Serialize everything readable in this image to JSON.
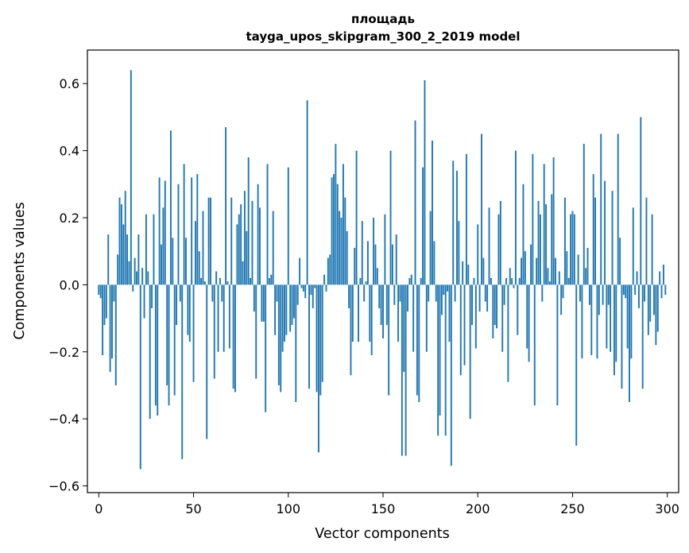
{
  "chart_data": {
    "type": "bar",
    "title_lines": [
      "площадь",
      "tayga_upos_skipgram_300_2_2019 model"
    ],
    "xlabel": "Vector components",
    "ylabel": "Components values",
    "xlim": [
      -6,
      306
    ],
    "ylim": [
      -0.62,
      0.7
    ],
    "xticks": [
      0,
      50,
      100,
      150,
      200,
      250,
      300
    ],
    "yticks": [
      -0.6,
      -0.4,
      -0.2,
      0.0,
      0.2,
      0.4,
      0.6
    ],
    "ytick_labels": [
      "−0.6",
      "−0.4",
      "−0.2",
      "0.0",
      "0.2",
      "0.4",
      "0.6"
    ],
    "grid": false,
    "bar_color": "#1f77b4",
    "values": [
      -0.03,
      -0.04,
      -0.21,
      -0.12,
      -0.1,
      0.15,
      -0.26,
      -0.22,
      -0.05,
      -0.3,
      0.09,
      0.26,
      0.24,
      0.18,
      0.28,
      0.15,
      0.07,
      0.64,
      -0.02,
      0.08,
      0.04,
      0.15,
      -0.55,
      0.05,
      -0.1,
      0.21,
      0.04,
      -0.4,
      -0.07,
      0.21,
      -0.36,
      -0.39,
      0.32,
      0.12,
      0.23,
      0.31,
      -0.3,
      -0.36,
      0.46,
      0.14,
      -0.33,
      -0.12,
      0.3,
      -0.05,
      -0.52,
      0.36,
      0.14,
      -0.15,
      -0.17,
      0.32,
      -0.29,
      0.19,
      0.33,
      0.1,
      0.02,
      0.22,
      0.01,
      -0.46,
      0.26,
      0.26,
      -0.05,
      -0.28,
      0.04,
      -0.2,
      0.02,
      -0.05,
      -0.2,
      0.47,
      0.01,
      -0.19,
      0.26,
      -0.31,
      -0.32,
      0.18,
      0.21,
      0.24,
      0.07,
      0.28,
      0.16,
      0.38,
      0.02,
      0.25,
      -0.08,
      -0.28,
      0.3,
      0.23,
      -0.11,
      -0.11,
      -0.38,
      0.36,
      0.02,
      0.03,
      0.22,
      -0.15,
      -0.05,
      -0.3,
      -0.32,
      -0.2,
      -0.17,
      -0.15,
      0.35,
      -0.14,
      -0.12,
      -0.1,
      -0.35,
      -0.06,
      0.08,
      -0.01,
      -0.02,
      -0.04,
      0.55,
      -0.31,
      -0.03,
      -0.07,
      -0.01,
      -0.32,
      -0.5,
      -0.33,
      -0.29,
      0.03,
      -0.02,
      0.08,
      0.09,
      0.32,
      0.33,
      0.42,
      0.3,
      0.22,
      0.2,
      0.36,
      0.26,
      0.16,
      -0.07,
      -0.27,
      -0.17,
      0.11,
      0.4,
      -0.17,
      0.02,
      0.19,
      -0.05,
      0.01,
      0.13,
      -0.17,
      -0.21,
      0.2,
      0.12,
      0.05,
      -0.07,
      -0.12,
      -0.16,
      0.21,
      -0.12,
      -0.33,
      0.4,
      0.12,
      -0.06,
      0.15,
      -0.17,
      -0.05,
      -0.51,
      -0.26,
      -0.51,
      -0.08,
      0.02,
      0.03,
      -0.2,
      0.49,
      -0.33,
      -0.35,
      0.02,
      0.35,
      0.61,
      -0.2,
      -0.05,
      0.22,
      0.43,
      0.13,
      -0.05,
      -0.45,
      -0.39,
      -0.09,
      -0.03,
      -0.45,
      -0.02,
      -0.17,
      -0.54,
      0.37,
      -0.05,
      0.34,
      0.19,
      -0.27,
      0.07,
      -0.24,
      0.39,
      0.06,
      -0.4,
      -0.12,
      0.02,
      -0.19,
      0.18,
      -0.08,
      0.45,
      0.08,
      -0.05,
      -0.08,
      0.23,
      0.02,
      -0.16,
      -0.12,
      -0.13,
      0.21,
      0.25,
      -0.2,
      -0.06,
      0.02,
      -0.29,
      0.05,
      0.02,
      -0.01,
      0.4,
      -0.15,
      0.02,
      0.08,
      0.3,
      0.1,
      -0.19,
      -0.23,
      0.12,
      0.39,
      -0.36,
      0.08,
      0.25,
      0.21,
      -0.05,
      0.36,
      0.24,
      0.05,
      0.01,
      0.27,
      0.38,
      0.08,
      -0.36,
      0.04,
      -0.09,
      -0.04,
      0.26,
      0.1,
      0.02,
      0.21,
      0.22,
      0.21,
      -0.48,
      0.09,
      -0.05,
      -0.22,
      0.42,
      0.05,
      0.11,
      -0.06,
      -0.21,
      0.33,
      0.26,
      -0.22,
      -0.09,
      0.45,
      -0.06,
      0.31,
      -0.19,
      -0.06,
      -0.2,
      0.28,
      -0.27,
      -0.23,
      0.45,
      0.14,
      -0.31,
      -0.03,
      -0.04,
      -0.19,
      -0.35,
      -0.22,
      0.23,
      -0.03,
      0.04,
      -0.07,
      0.5,
      -0.31,
      -0.05,
      0.26,
      -0.15,
      -0.11,
      0.21,
      -0.09,
      -0.18,
      -0.14,
      0.04,
      -0.04,
      0.06,
      -0.03
    ]
  }
}
